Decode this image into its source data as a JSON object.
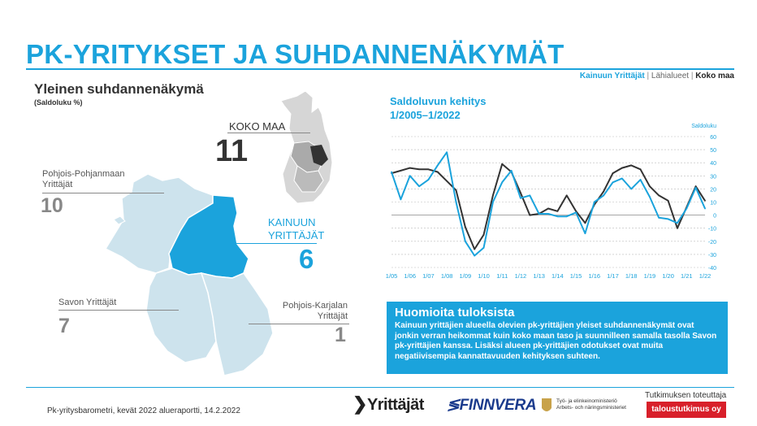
{
  "header": {
    "title": "PK-YRITYKSET JA SUHDANNENÄKYMÄT",
    "legend": {
      "kainuu": "Kainuun Yrittäjät",
      "sep1": " | ",
      "lahialueet": "Lähialueet",
      "sep2": " | ",
      "koko": "Koko maa"
    }
  },
  "left": {
    "subtitle": "Yleinen suhdannenäkymä",
    "note": "(Saldoluku %)",
    "koko_maa": {
      "label": "KOKO MAA",
      "value": "11"
    },
    "kainuu": {
      "label_1": "KAINUUN",
      "label_2": "YRITTÄJÄT",
      "value": "6"
    },
    "pohjois_pohjanmaa": {
      "label_1": "Pohjois-Pohjanmaan",
      "label_2": "Yrittäjät",
      "value": "10"
    },
    "savo": {
      "label": "Savon Yrittäjät",
      "value": "7"
    },
    "pohjois_karjala": {
      "label_1": "Pohjois-Karjalan",
      "label_2": "Yrittäjät",
      "value": "1"
    }
  },
  "colors": {
    "accent": "#1ba3dc",
    "dark_line": "#333333",
    "region_light": "#cde3ed",
    "region_highlight": "#1ba3dc",
    "finland_base": "#d6d6d6"
  },
  "chart_data": {
    "type": "line",
    "title_1": "Saldoluvun kehitys",
    "title_2": "1/2005–1/2022",
    "ylabel": "Saldoluku",
    "ylim": [
      -40,
      60
    ],
    "yticks": [
      60,
      50,
      40,
      30,
      20,
      10,
      0,
      -10,
      -20,
      -30,
      -40
    ],
    "xticks": [
      "1/05",
      "1/06",
      "1/07",
      "1/08",
      "1/09",
      "1/10",
      "1/11",
      "1/12",
      "1/13",
      "1/14",
      "1/15",
      "1/16",
      "1/17",
      "1/18",
      "1/19",
      "1/20",
      "1/21",
      "1/22"
    ],
    "x_start": 2005,
    "x_end": 2022,
    "grid": true,
    "series": [
      {
        "name": "Kainuun Yrittäjät",
        "color": "#1ba3dc",
        "x": [
          2005.0,
          2005.5,
          2006.0,
          2006.5,
          2007.0,
          2007.5,
          2008.0,
          2008.5,
          2009.0,
          2009.5,
          2010.0,
          2010.5,
          2011.0,
          2011.5,
          2012.0,
          2012.5,
          2013.0,
          2013.5,
          2014.0,
          2014.5,
          2015.0,
          2015.5,
          2016.0,
          2016.5,
          2017.0,
          2017.5,
          2018.0,
          2018.5,
          2019.0,
          2019.5,
          2020.0,
          2020.5,
          2021.0,
          2021.5,
          2022.0
        ],
        "values": [
          33,
          12,
          30,
          22,
          27,
          38,
          48,
          10,
          -20,
          -31,
          -25,
          10,
          25,
          34,
          13,
          15,
          1,
          1,
          -1,
          -1,
          2,
          -14,
          10,
          15,
          25,
          28,
          20,
          27,
          14,
          -2,
          -3,
          -6,
          5,
          21,
          5
        ]
      },
      {
        "name": "Koko maa",
        "color": "#333333",
        "x": [
          2005.0,
          2005.5,
          2006.0,
          2006.5,
          2007.0,
          2007.5,
          2008.0,
          2008.5,
          2009.0,
          2009.5,
          2010.0,
          2010.5,
          2011.0,
          2011.5,
          2012.0,
          2012.5,
          2013.0,
          2013.5,
          2014.0,
          2014.5,
          2015.0,
          2015.5,
          2016.0,
          2016.5,
          2017.0,
          2017.5,
          2018.0,
          2018.5,
          2019.0,
          2019.5,
          2020.0,
          2020.5,
          2021.0,
          2021.5,
          2022.0
        ],
        "values": [
          32,
          34,
          36,
          35,
          35,
          33,
          26,
          19,
          -9,
          -26,
          -15,
          15,
          39,
          33,
          17,
          0,
          1,
          5,
          3,
          15,
          3,
          -6,
          8,
          18,
          32,
          36,
          38,
          35,
          22,
          15,
          11,
          -10,
          6,
          22,
          11
        ]
      }
    ]
  },
  "notes": {
    "heading": "Huomioita tuloksista",
    "body": "Kainuun yrittäjien alueella olevien pk-yrittäjien yleiset suhdannenäkymät ovat jonkin verran heikommat kuin koko maan taso ja suunnilleen samalla tasolla Savon pk-yrittäjien kanssa. Lisäksi alueen pk-yrittäjien odotukset ovat muita negatiivisempia kannattavuuden kehityksen suhteen."
  },
  "footer": {
    "source": "Pk-yritysbarometri, kevät 2022 alueraportti, 14.2.2022",
    "logo_yrittajat": "Yrittäjät",
    "logo_finnvera": "FINNVERA",
    "tem_line1": "Työ- ja elinkeinoministeriö",
    "tem_line2": "Arbets- och näringsministeriet",
    "research_by": "Tutkimuksen toteuttaja",
    "research_company": "taloustutkimus oy"
  }
}
